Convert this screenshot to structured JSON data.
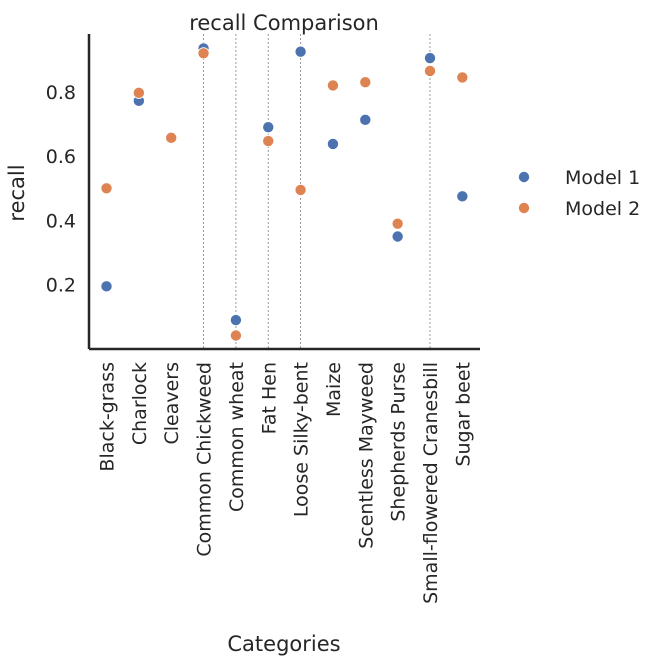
{
  "chart_data": {
    "type": "scatter",
    "title": "recall Comparison",
    "xlabel": "Categories",
    "ylabel": "recall",
    "categories": [
      "Black-grass",
      "Charlock",
      "Cleavers",
      "Common Chickweed",
      "Common wheat",
      "Fat Hen",
      "Loose Silky-bent",
      "Maize",
      "Scentless Mayweed",
      "Shepherds Purse",
      "Small-flowered Cranesbill",
      "Sugar beet"
    ],
    "yticks": [
      "0.2",
      "0.4",
      "0.6",
      "0.8"
    ],
    "ylim": [
      0.0,
      0.98
    ],
    "series": [
      {
        "name": "Model 1",
        "color": "#4c72b0",
        "values": [
          0.195,
          0.772,
          null,
          0.935,
          0.09,
          0.69,
          0.925,
          0.638,
          0.713,
          0.35,
          0.905,
          0.475
        ]
      },
      {
        "name": "Model 2",
        "color": "#dd8452",
        "values": [
          0.5,
          0.797,
          0.657,
          0.92,
          0.042,
          0.647,
          0.495,
          0.82,
          0.83,
          0.39,
          0.865,
          0.845
        ]
      }
    ],
    "vertical_guides": [
      "Common Chickweed",
      "Common wheat",
      "Fat Hen",
      "Loose Silky-bent",
      "Small-flowered Cranesbill"
    ],
    "legend_position": "right",
    "grid": false
  }
}
